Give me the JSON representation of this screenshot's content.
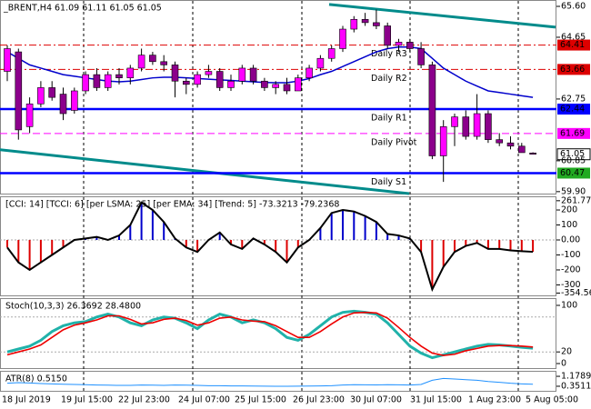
{
  "chart_data": [
    {
      "type": "candlestick",
      "title": "_BRENT,H4  61.09 61.11 61.05 61.05",
      "up_color": "#ff00ff",
      "down_color": "#8b008b",
      "open": [
        63.6,
        64.2,
        61.9,
        62.6,
        63.1,
        62.9,
        62.4,
        63.0,
        63.5,
        63.1,
        63.5,
        63.4,
        63.7,
        64.1,
        63.9,
        63.8,
        63.3,
        63.2,
        63.5,
        63.6,
        63.1,
        63.3,
        63.7,
        63.3,
        63.1,
        63.2,
        63.0,
        63.4,
        63.7,
        64.0,
        64.3,
        64.9,
        65.2,
        65.1,
        65.0,
        64.4,
        64.5,
        64.3,
        63.8,
        61.0,
        61.9,
        62.2,
        61.6,
        62.3,
        61.5,
        61.4,
        61.3,
        61.09
      ],
      "high": [
        64.4,
        64.3,
        62.8,
        63.3,
        63.3,
        63.1,
        63.1,
        63.6,
        63.7,
        63.6,
        63.7,
        63.8,
        64.3,
        64.2,
        64.1,
        63.9,
        63.4,
        63.6,
        63.8,
        63.7,
        63.5,
        63.8,
        63.8,
        63.4,
        63.3,
        63.4,
        63.5,
        63.8,
        64.1,
        64.4,
        65.0,
        65.3,
        65.4,
        65.5,
        65.1,
        64.6,
        64.6,
        64.5,
        63.9,
        62.1,
        62.3,
        62.4,
        62.9,
        62.4,
        61.7,
        61.6,
        61.4,
        61.11
      ],
      "low": [
        63.3,
        61.5,
        61.7,
        62.5,
        62.7,
        62.1,
        62.3,
        62.9,
        63.0,
        63.0,
        63.2,
        63.2,
        63.6,
        63.8,
        63.6,
        62.8,
        62.9,
        63.1,
        63.4,
        63.0,
        63.0,
        63.2,
        63.2,
        63.0,
        62.9,
        62.9,
        63.0,
        63.3,
        63.6,
        63.9,
        64.2,
        64.8,
        65.0,
        64.9,
        64.3,
        64.2,
        64.2,
        63.7,
        60.9,
        60.2,
        61.3,
        61.5,
        61.5,
        61.4,
        61.3,
        61.2,
        61.1,
        61.05
      ],
      "close": [
        64.3,
        61.8,
        62.6,
        63.1,
        62.8,
        62.3,
        63.0,
        63.5,
        63.1,
        63.5,
        63.4,
        63.7,
        64.1,
        63.9,
        63.8,
        63.3,
        63.2,
        63.5,
        63.6,
        63.1,
        63.3,
        63.7,
        63.3,
        63.1,
        63.2,
        63.0,
        63.4,
        63.7,
        64.0,
        64.3,
        64.9,
        65.2,
        65.1,
        65.0,
        64.4,
        64.5,
        64.3,
        63.8,
        61.0,
        61.9,
        62.2,
        61.6,
        62.3,
        61.5,
        61.4,
        61.3,
        61.1,
        61.05
      ],
      "ma": {
        "color": "#0000cc",
        "values": [
          64.2,
          64.0,
          63.8,
          63.7,
          63.6,
          63.5,
          63.45,
          63.4,
          63.35,
          63.3,
          63.28,
          63.3,
          63.35,
          63.4,
          63.42,
          63.42,
          63.4,
          63.38,
          63.36,
          63.34,
          63.32,
          63.3,
          63.28,
          63.26,
          63.25,
          63.25,
          63.3,
          63.38,
          63.5,
          63.6,
          63.75,
          63.9,
          64.05,
          64.2,
          64.3,
          64.35,
          64.35,
          64.3,
          64.0,
          63.7,
          63.5,
          63.3,
          63.15,
          63.0,
          62.95,
          62.9,
          62.85,
          62.8
        ]
      },
      "channels": {
        "color": "#008b8b",
        "upper": [
          65.66,
          64.96
        ],
        "lower": [
          61.19,
          59.84
        ]
      },
      "levels": [
        {
          "name": "Daily R3",
          "value": 64.41,
          "color": "#dd0000",
          "style": "dashdot"
        },
        {
          "name": "Daily R2",
          "value": 63.66,
          "color": "#dd0000",
          "style": "dashdot"
        },
        {
          "name": "Daily R1",
          "value": 62.44,
          "color": "#0000ff",
          "style": "solid"
        },
        {
          "name": "Daily Pivot",
          "value": 61.69,
          "color": "#ff00ff",
          "style": "dash"
        },
        {
          "name": "Daily S1",
          "value": 60.47,
          "color": "#0000ff",
          "style": "solid"
        }
      ],
      "last_price": 61.05,
      "ylim": [
        59.84,
        65.74
      ],
      "yticks": [
        {
          "value": 65.6,
          "label": "65.60"
        },
        64.65,
        62.75,
        60.85,
        {
          "value": 59.9,
          "label": "59.90"
        }
      ],
      "time_labels": [
        "18 Jul 2019",
        "19 Jul 15:00",
        "22 Jul 23:00",
        "24 Jul 07:00",
        "25 Jul 15:00",
        "26 Jul 23:00",
        "30 Jul 07:00",
        "31 Jul 15:00",
        "1 Aug 23:00",
        "5 Aug 05:00"
      ]
    },
    {
      "type": "oscillator",
      "title": "[CCI: 14] [TCCI: 6] [per LSMA: 25] [per EMA: 34] [Trend: 5]  -73.3213 -79.2368",
      "color": "#000000",
      "up_color": "#0000cc",
      "down_color": "#dd0000",
      "values": [
        -50,
        -150,
        -200,
        -150,
        -100,
        -50,
        0,
        10,
        20,
        0,
        30,
        100,
        250,
        200,
        120,
        10,
        -50,
        -80,
        0,
        50,
        -30,
        -60,
        10,
        -30,
        -80,
        -150,
        -50,
        0,
        80,
        180,
        200,
        190,
        160,
        120,
        40,
        30,
        10,
        -80,
        -330,
        -180,
        -80,
        -40,
        -20,
        -60,
        -60,
        -70,
        -75,
        -79.2368
      ],
      "ylim": [
        -370,
        279
      ],
      "yticks": [
        {
          "value": 261.7738,
          "label": "261.7738"
        },
        200,
        100,
        {
          "value": 0,
          "label": "0.00"
        },
        -100,
        -200,
        -300,
        -354.565
      ]
    },
    {
      "type": "line",
      "title": "Stoch(10,3,3) 26.3692 28.4800",
      "series": [
        {
          "color": "#20b2aa",
          "width": 3,
          "values": [
            20,
            25,
            30,
            40,
            55,
            65,
            70,
            72,
            80,
            85,
            80,
            70,
            65,
            75,
            80,
            78,
            70,
            60,
            75,
            85,
            80,
            70,
            75,
            70,
            60,
            45,
            40,
            50,
            65,
            80,
            88,
            90,
            88,
            85,
            70,
            50,
            30,
            18,
            10,
            15,
            20,
            25,
            30,
            33,
            32,
            30,
            28,
            26.3692
          ]
        },
        {
          "color": "#ee0000",
          "width": 1.6,
          "values": [
            15,
            20,
            25,
            32,
            45,
            58,
            66,
            70,
            75,
            82,
            82,
            76,
            68,
            70,
            76,
            78,
            74,
            66,
            70,
            78,
            80,
            75,
            73,
            72,
            65,
            55,
            45,
            45,
            55,
            68,
            80,
            87,
            88,
            87,
            78,
            62,
            45,
            30,
            18,
            14,
            16,
            22,
            26,
            30,
            31,
            31,
            30,
            28.48
          ]
        }
      ],
      "levels": [
        80,
        20
      ],
      "ylim": [
        -7.8,
        110.9
      ],
      "yticks": [
        100,
        20,
        0
      ]
    },
    {
      "type": "line",
      "title": "ATR(8) 0.5150",
      "series": [
        {
          "color": "#1e90ff",
          "width": 1,
          "values": [
            0.6,
            0.65,
            0.62,
            0.58,
            0.55,
            0.52,
            0.5,
            0.48,
            0.45,
            0.44,
            0.42,
            0.42,
            0.45,
            0.44,
            0.42,
            0.45,
            0.44,
            0.42,
            0.4,
            0.4,
            0.38,
            0.38,
            0.37,
            0.36,
            0.35,
            0.35,
            0.36,
            0.37,
            0.38,
            0.4,
            0.45,
            0.48,
            0.47,
            0.46,
            0.48,
            0.47,
            0.45,
            0.5,
            0.85,
            1.0,
            0.95,
            0.9,
            0.85,
            0.75,
            0.68,
            0.6,
            0.55,
            0.515
          ]
        }
      ],
      "ylim": [
        -0.03,
        1.56
      ],
      "yticks": [
        1.1789,
        0.3511
      ]
    }
  ]
}
